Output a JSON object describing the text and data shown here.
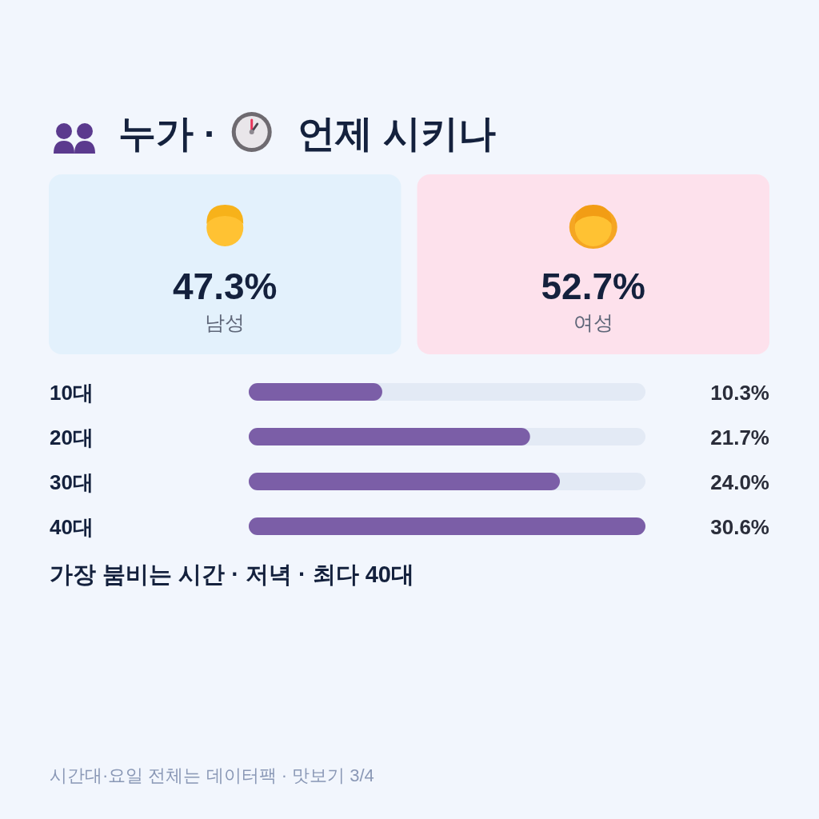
{
  "chart_data": [
    {
      "type": "other",
      "title": "누가 · 언제 시키나",
      "categories": [
        "남성",
        "여성"
      ],
      "value_labels": [
        "47.3%",
        "52.7%"
      ],
      "colors": [
        "#e3f1fc",
        "#fde1ec"
      ]
    },
    {
      "type": "bar",
      "orientation": "horizontal",
      "categories": [
        "10대",
        "20대",
        "30대",
        "40대"
      ],
      "values": [
        10.3,
        21.7,
        24.0,
        30.6
      ],
      "value_labels": [
        "10.3%",
        "21.7%",
        "24.0%",
        "30.6%"
      ],
      "color": "#7b5ea7",
      "annotations": [
        "가장 붐비는 시간 · 저녁 · 최다 40대",
        "시간대·요일 전체는 데이터팩 · 맛보기 3/4"
      ]
    }
  ]
}
